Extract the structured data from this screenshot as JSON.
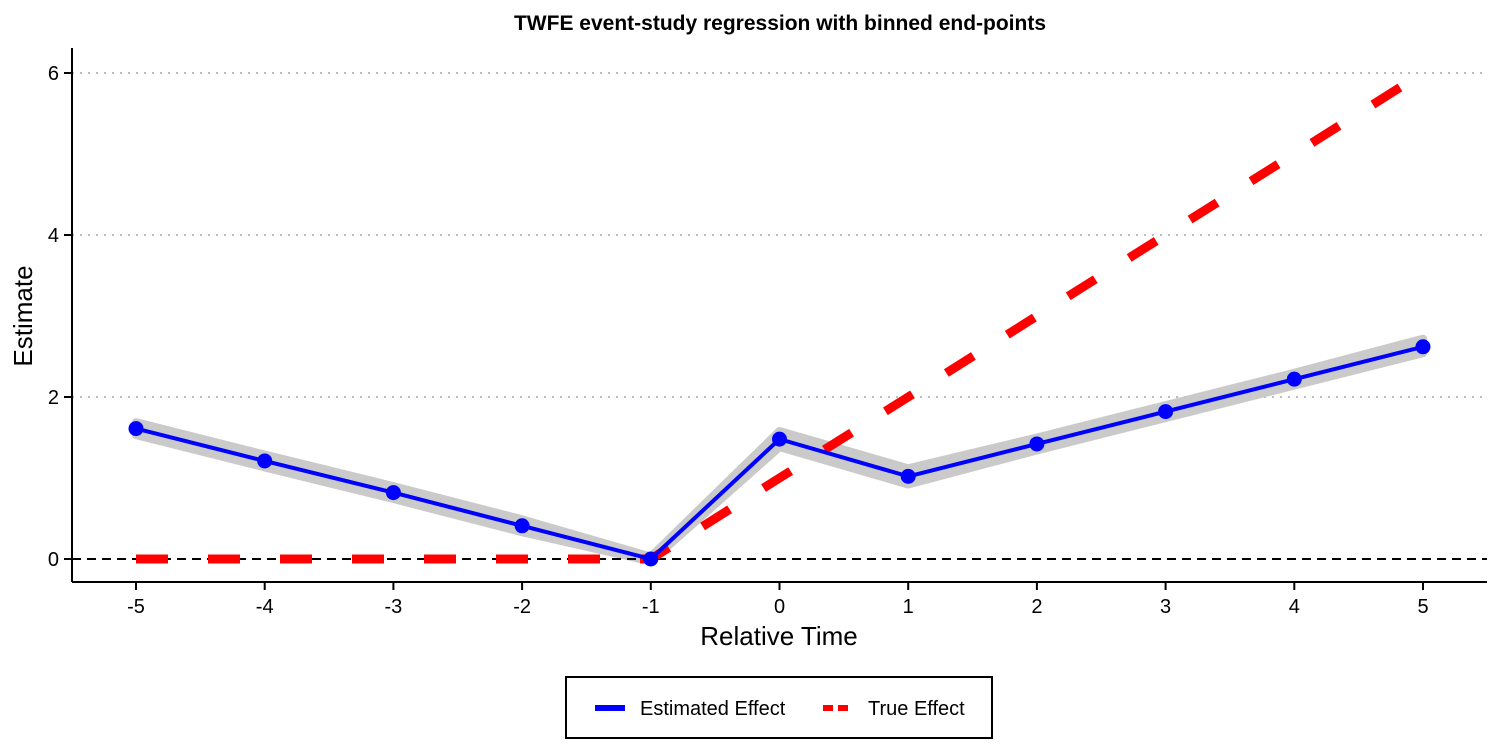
{
  "chart_data": {
    "type": "line",
    "title": "TWFE event-study regression with binned end-points",
    "xlabel": "Relative Time",
    "ylabel": "Estimate",
    "x": [
      -5,
      -4,
      -3,
      -2,
      -1,
      0,
      1,
      2,
      3,
      4,
      5
    ],
    "xlim": [
      -5.5,
      5.5
    ],
    "ylim": [
      -0.3,
      6.3
    ],
    "xticks": [
      -5,
      -4,
      -3,
      -2,
      -1,
      0,
      1,
      2,
      3,
      4,
      5
    ],
    "yticks": [
      0,
      2,
      4,
      6
    ],
    "grid": "horizontal dotted at y ticks",
    "reference_line": {
      "y": 0,
      "style": "dashed"
    },
    "legend_position": "bottom",
    "series": [
      {
        "name": "Estimated Effect",
        "color": "#0000ff",
        "style": "solid line with points and grey confidence band",
        "values": [
          1.61,
          1.21,
          0.82,
          0.41,
          0.0,
          1.48,
          1.02,
          1.42,
          1.82,
          2.22,
          2.62
        ],
        "ci_lower": [
          1.53,
          1.13,
          0.74,
          0.33,
          -0.03,
          1.38,
          0.92,
          1.34,
          1.74,
          2.14,
          2.54
        ],
        "ci_upper": [
          1.69,
          1.29,
          0.9,
          0.49,
          0.03,
          1.58,
          1.12,
          1.5,
          1.9,
          2.3,
          2.72
        ]
      },
      {
        "name": "True Effect",
        "color": "#ff0000",
        "style": "thick dashed line",
        "values": [
          0,
          0,
          0,
          0,
          0,
          1,
          2,
          3,
          4,
          5,
          6
        ]
      }
    ]
  }
}
